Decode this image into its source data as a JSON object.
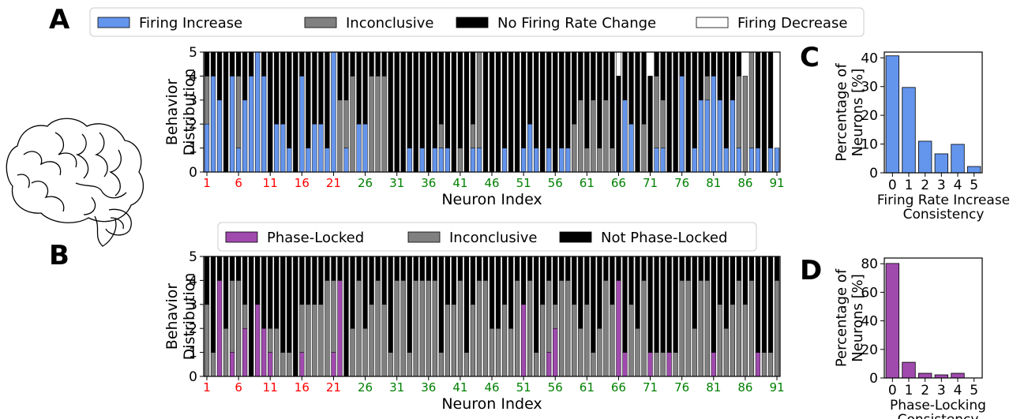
{
  "panel_labels": {
    "a": "A",
    "b": "B",
    "c": "C",
    "d": "D"
  },
  "colors": {
    "increase": "#6495ED",
    "inconclusive": "#808080",
    "no_change": "#000000",
    "decrease": "#ffffff",
    "phase_locked": "#A04AAE",
    "tick_red": "#ff0000",
    "tick_green": "#008000"
  },
  "icons": {
    "brain": "brain-illustration"
  },
  "chart_data": [
    {
      "id": "A",
      "type": "bar",
      "stacked": true,
      "xlabel": "Neuron Index",
      "ylabel": [
        "Behavior",
        "Distribution"
      ],
      "ylim": [
        0,
        5
      ],
      "yticks": [
        0,
        1,
        2,
        3,
        4,
        5
      ],
      "xticks": [
        "1",
        "6",
        "11",
        "16",
        "21",
        "26",
        "31",
        "36",
        "41",
        "46",
        "51",
        "56",
        "61",
        "66",
        "71",
        "76",
        "81",
        "86",
        "91"
      ],
      "red_tick_max": 21,
      "legend_position": "top",
      "series": [
        {
          "name": "Firing Increase",
          "key": "increase",
          "values": [
            2,
            4,
            3,
            0,
            4,
            1,
            3,
            4,
            5,
            4,
            0,
            2,
            2,
            1,
            0,
            4,
            1,
            2,
            2,
            1,
            5,
            0,
            1,
            0,
            2,
            2,
            0,
            0,
            0,
            0,
            0,
            0,
            1,
            0,
            1,
            0,
            1,
            1,
            1,
            0,
            0,
            0,
            1,
            1,
            0,
            0,
            0,
            1,
            0,
            0,
            1,
            2,
            1,
            0,
            1,
            0,
            1,
            1,
            0,
            0,
            0,
            0,
            0,
            0,
            0,
            0,
            3,
            2,
            0,
            0,
            0,
            1,
            1,
            0,
            0,
            4,
            0,
            1,
            3,
            3,
            4,
            3,
            1,
            3,
            1,
            0,
            1,
            1,
            0,
            1,
            1
          ]
        },
        {
          "name": "Inconclusive",
          "key": "inconclusive",
          "values": [
            2,
            0,
            0,
            0,
            0,
            3,
            0,
            0,
            0,
            0,
            0,
            0,
            0,
            0,
            0,
            0,
            0,
            0,
            0,
            0,
            0,
            3,
            2,
            4,
            0,
            0,
            4,
            4,
            4,
            0,
            0,
            0,
            0,
            0,
            0,
            0,
            0,
            1,
            0,
            0,
            1,
            0,
            1,
            4,
            0,
            0,
            0,
            0,
            0,
            0,
            0,
            0,
            0,
            0,
            0,
            0,
            0,
            0,
            2,
            3,
            1,
            3,
            1,
            3,
            1,
            0,
            0,
            0,
            0,
            2,
            0,
            3,
            2,
            0,
            0,
            0,
            0,
            0,
            0,
            1,
            0,
            0,
            0,
            0,
            3,
            4,
            4,
            0,
            0,
            0,
            0
          ]
        },
        {
          "name": "No Firing Rate Change",
          "key": "no_change",
          "values": [
            1,
            1,
            2,
            5,
            1,
            1,
            2,
            1,
            0,
            1,
            5,
            3,
            3,
            4,
            5,
            1,
            4,
            3,
            3,
            4,
            0,
            2,
            2,
            1,
            3,
            3,
            1,
            1,
            1,
            5,
            5,
            5,
            4,
            5,
            4,
            5,
            4,
            3,
            4,
            5,
            4,
            5,
            3,
            0,
            5,
            5,
            5,
            4,
            5,
            5,
            4,
            3,
            4,
            5,
            4,
            5,
            4,
            4,
            3,
            2,
            4,
            2,
            4,
            2,
            4,
            4,
            2,
            3,
            5,
            3,
            4,
            1,
            2,
            5,
            5,
            1,
            5,
            4,
            2,
            1,
            1,
            2,
            4,
            2,
            1,
            0,
            0,
            4,
            5,
            4,
            0
          ]
        },
        {
          "name": "Firing Decrease",
          "key": "decrease",
          "values": [
            0,
            0,
            0,
            0,
            0,
            0,
            0,
            0,
            0,
            0,
            0,
            0,
            0,
            0,
            0,
            0,
            0,
            0,
            0,
            0,
            0,
            0,
            0,
            0,
            0,
            0,
            0,
            0,
            0,
            0,
            0,
            0,
            0,
            0,
            0,
            0,
            0,
            0,
            0,
            0,
            0,
            0,
            0,
            0,
            0,
            0,
            0,
            0,
            0,
            0,
            0,
            0,
            0,
            0,
            0,
            0,
            0,
            0,
            0,
            0,
            0,
            0,
            0,
            0,
            0,
            1,
            0,
            0,
            0,
            0,
            0,
            0,
            0,
            0,
            0,
            0,
            0,
            0,
            0,
            0,
            0,
            0,
            0,
            0,
            0,
            0,
            0,
            0,
            0,
            0,
            0
          ]
        }
      ]
    },
    {
      "id": "B",
      "type": "bar",
      "stacked": true,
      "xlabel": "Neuron Index",
      "ylabel": [
        "Behavior",
        "Distribution"
      ],
      "ylim": [
        0,
        5
      ],
      "yticks": [
        0,
        1,
        2,
        3,
        4,
        5
      ],
      "xticks": [
        "1",
        "6",
        "11",
        "16",
        "21",
        "26",
        "31",
        "36",
        "41",
        "46",
        "51",
        "56",
        "61",
        "66",
        "71",
        "76",
        "81",
        "86",
        "91"
      ],
      "red_tick_max": 21,
      "legend_position": "top",
      "series": [
        {
          "name": "Phase-Locked",
          "key": "phase_locked",
          "values": [
            0,
            0,
            4,
            0,
            1,
            0,
            2,
            0,
            3,
            2,
            1,
            0,
            0,
            0,
            0,
            1,
            0,
            0,
            0,
            0,
            1,
            4,
            0,
            0,
            0,
            0,
            0,
            0,
            0,
            0,
            0,
            0,
            0,
            0,
            0,
            0,
            0,
            0,
            0,
            0,
            0,
            0,
            0,
            0,
            0,
            0,
            0,
            0,
            0,
            0,
            3,
            0,
            0,
            0,
            1,
            2,
            0,
            0,
            0,
            0,
            0,
            0,
            0,
            0,
            0,
            4,
            1,
            0,
            0,
            0,
            1,
            0,
            0,
            1,
            0,
            0,
            0,
            0,
            0,
            0,
            1,
            0,
            0,
            0,
            0,
            0,
            0,
            1,
            0,
            0,
            0
          ]
        },
        {
          "name": "Inconclusive",
          "key": "inconclusive",
          "values": [
            3,
            1,
            0,
            2,
            3,
            4,
            1,
            0,
            0,
            0,
            1,
            2,
            1,
            1,
            0,
            2,
            3,
            3,
            3,
            4,
            3,
            0,
            0,
            2,
            4,
            2,
            3,
            4,
            3,
            1,
            4,
            4,
            1,
            4,
            4,
            4,
            4,
            1,
            3,
            3,
            4,
            1,
            3,
            4,
            4,
            2,
            2,
            3,
            2,
            4,
            0,
            4,
            1,
            3,
            3,
            1,
            4,
            4,
            3,
            2,
            3,
            1,
            2,
            4,
            3,
            0,
            0,
            3,
            2,
            4,
            0,
            1,
            1,
            0,
            1,
            4,
            4,
            2,
            4,
            4,
            0,
            3,
            2,
            3,
            4,
            3,
            4,
            0,
            1,
            1,
            4
          ]
        },
        {
          "name": "Not Phase-Locked",
          "key": "not_locked",
          "values": [
            2,
            4,
            1,
            3,
            1,
            1,
            2,
            5,
            2,
            3,
            3,
            3,
            4,
            4,
            5,
            2,
            2,
            2,
            2,
            1,
            1,
            1,
            5,
            3,
            1,
            3,
            2,
            1,
            2,
            4,
            1,
            1,
            4,
            1,
            1,
            1,
            1,
            4,
            2,
            2,
            1,
            4,
            2,
            1,
            1,
            3,
            3,
            2,
            3,
            1,
            2,
            1,
            4,
            2,
            1,
            2,
            1,
            1,
            2,
            3,
            2,
            4,
            3,
            1,
            2,
            1,
            4,
            2,
            3,
            1,
            4,
            4,
            4,
            4,
            4,
            1,
            1,
            3,
            1,
            1,
            4,
            2,
            3,
            2,
            1,
            2,
            1,
            4,
            4,
            4,
            1
          ]
        }
      ]
    },
    {
      "id": "C",
      "type": "bar",
      "categories": [
        "0",
        "1",
        "2",
        "3",
        "4",
        "5"
      ],
      "values": [
        40.7,
        29.7,
        11.0,
        6.6,
        9.9,
        2.2
      ],
      "xlabel": [
        "Firing Rate Increase",
        "Consistency"
      ],
      "ylabel": [
        "Percentage of",
        "Neurons [%]"
      ],
      "ylim": [
        0,
        42
      ],
      "yticks": [
        0,
        10,
        20,
        30,
        40
      ],
      "color_key": "increase"
    },
    {
      "id": "D",
      "type": "bar",
      "categories": [
        "0",
        "1",
        "2",
        "3",
        "4",
        "5"
      ],
      "values": [
        80.2,
        11.0,
        3.3,
        2.2,
        3.3,
        0
      ],
      "xlabel": [
        "Phase-Locking",
        "Consistency"
      ],
      "ylabel": [
        "Percentage of",
        "Neurons [%]"
      ],
      "ylim": [
        0,
        84
      ],
      "yticks": [
        0,
        20,
        40,
        60,
        80
      ],
      "color_key": "phase_locked"
    }
  ]
}
